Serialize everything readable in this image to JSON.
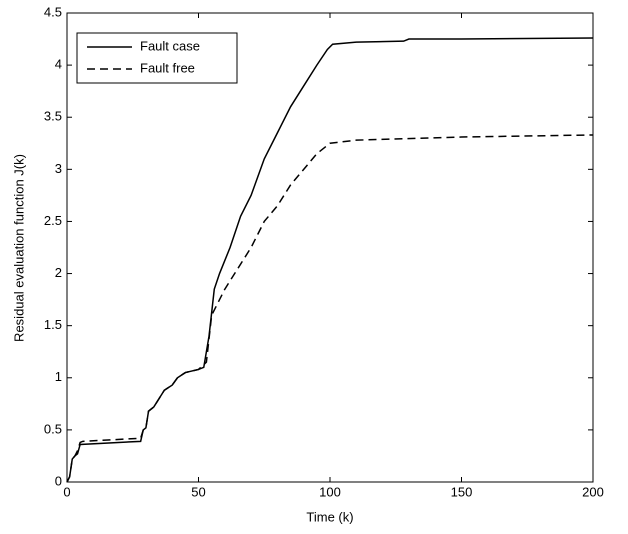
{
  "chart_data": {
    "type": "line",
    "xlabel": "Time (k)",
    "ylabel": "Residual evaluation function J(k)",
    "xlim": [
      0,
      200
    ],
    "ylim": [
      0,
      4.5
    ],
    "xticks": [
      0,
      50,
      100,
      150,
      200
    ],
    "yticks": [
      0,
      0.5,
      1,
      1.5,
      2,
      2.5,
      3,
      3.5,
      4,
      4.5
    ],
    "legend": "top-left",
    "series": [
      {
        "name": "Fault case",
        "color": "#000000",
        "dash": "solid",
        "x": [
          0,
          1,
          2,
          3,
          4,
          5,
          28,
          29,
          30,
          31,
          33,
          35,
          37,
          40,
          42,
          45,
          50,
          52,
          54,
          56,
          58,
          62,
          66,
          70,
          75,
          80,
          85,
          90,
          95,
          99,
          101,
          110,
          128,
          130,
          150,
          200
        ],
        "values": [
          0,
          0.05,
          0.22,
          0.25,
          0.27,
          0.36,
          0.39,
          0.5,
          0.52,
          0.68,
          0.72,
          0.8,
          0.88,
          0.93,
          1.0,
          1.05,
          1.08,
          1.1,
          1.4,
          1.85,
          2.0,
          2.25,
          2.55,
          2.75,
          3.1,
          3.35,
          3.6,
          3.8,
          4.0,
          4.15,
          4.2,
          4.22,
          4.23,
          4.25,
          4.25,
          4.26
        ]
      },
      {
        "name": "Fault free",
        "color": "#000000",
        "dash": "dashed",
        "x": [
          0,
          1,
          2,
          3,
          4,
          5,
          6,
          28,
          29,
          30,
          31,
          33,
          35,
          37,
          40,
          42,
          45,
          50,
          53,
          55,
          60,
          65,
          70,
          75,
          80,
          85,
          90,
          95,
          100,
          110,
          150,
          200
        ],
        "values": [
          0,
          0.05,
          0.22,
          0.25,
          0.3,
          0.38,
          0.39,
          0.42,
          0.5,
          0.52,
          0.68,
          0.72,
          0.8,
          0.88,
          0.93,
          1.0,
          1.05,
          1.08,
          1.15,
          1.6,
          1.85,
          2.05,
          2.25,
          2.5,
          2.65,
          2.85,
          3.0,
          3.15,
          3.25,
          3.28,
          3.31,
          3.33
        ]
      }
    ]
  }
}
